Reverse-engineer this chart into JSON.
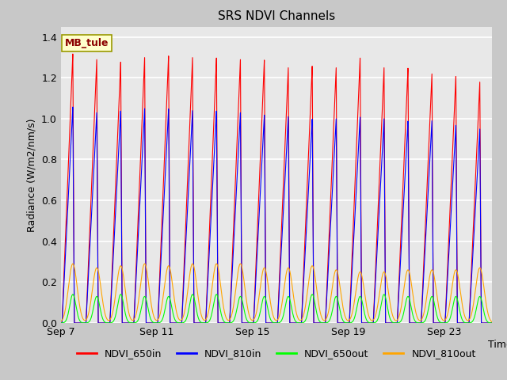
{
  "title": "SRS NDVI Channels",
  "ylabel": "Radiance (W/m2/nm/s)",
  "xlabel": "Time",
  "annotation": "MB_tule",
  "ylim": [
    0.0,
    1.45
  ],
  "legend": [
    "NDVI_650in",
    "NDVI_810in",
    "NDVI_650out",
    "NDVI_810out"
  ],
  "colors": [
    "red",
    "blue",
    "lime",
    "orange"
  ],
  "n_cycles": 18,
  "peak_650in": [
    1.32,
    1.29,
    1.28,
    1.3,
    1.31,
    1.3,
    1.3,
    1.29,
    1.29,
    1.25,
    1.26,
    1.25,
    1.3,
    1.25,
    1.25,
    1.22,
    1.21,
    1.18
  ],
  "peak_810in": [
    1.06,
    1.03,
    1.04,
    1.05,
    1.05,
    1.04,
    1.04,
    1.03,
    1.02,
    1.01,
    1.0,
    1.0,
    1.01,
    1.0,
    0.99,
    0.99,
    0.97,
    0.95
  ],
  "peak_650out": [
    0.14,
    0.13,
    0.14,
    0.13,
    0.13,
    0.14,
    0.14,
    0.13,
    0.13,
    0.13,
    0.14,
    0.13,
    0.13,
    0.14,
    0.13,
    0.13,
    0.13,
    0.13
  ],
  "peak_810out": [
    0.29,
    0.27,
    0.28,
    0.29,
    0.28,
    0.29,
    0.29,
    0.29,
    0.27,
    0.27,
    0.28,
    0.26,
    0.25,
    0.25,
    0.26,
    0.26,
    0.26,
    0.27
  ],
  "xtick_labels": [
    "Sep 7",
    "Sep 11",
    "Sep 15",
    "Sep 19",
    "Sep 23"
  ],
  "ytick_labels": [
    "0.0",
    "0.2",
    "0.4",
    "0.6",
    "0.8",
    "1.0",
    "1.2",
    "1.4"
  ],
  "fig_bg": "#c8c8c8",
  "axes_bg": "#e8e8e8",
  "grid_color": "white"
}
